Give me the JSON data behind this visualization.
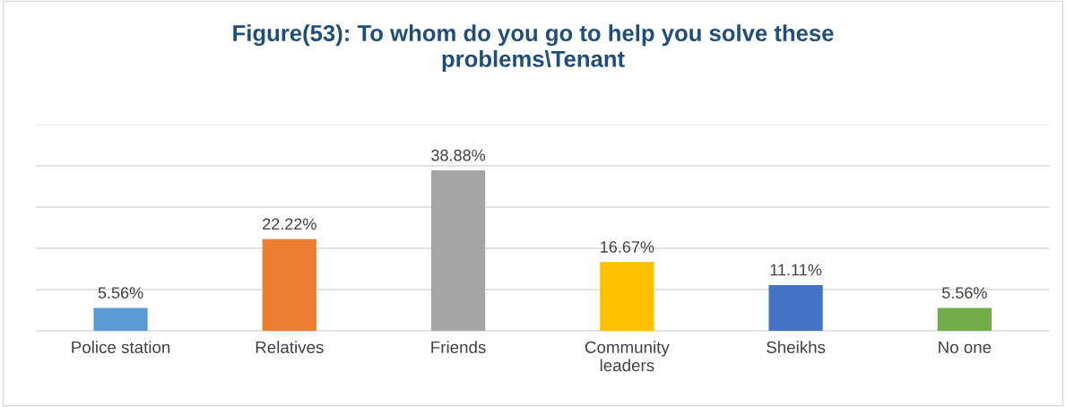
{
  "chart_data": {
    "type": "bar",
    "title": "Figure(53): To whom do you go to help you solve these\nproblems\\Tenant",
    "categories": [
      "Police station",
      "Relatives",
      "Friends",
      "Community\nleaders",
      "Sheikhs",
      "No one"
    ],
    "values": [
      5.56,
      22.22,
      38.88,
      16.67,
      11.11,
      5.56
    ],
    "colors": [
      "#5b9bd5",
      "#ed7d31",
      "#a5a5a5",
      "#ffc000",
      "#4472c4",
      "#70ad47"
    ],
    "value_labels": [
      "5.56%",
      "22.22%",
      "38.88%",
      "16.67%",
      "11.11%",
      "5.56%"
    ],
    "ylim": [
      0,
      50
    ],
    "yticks": [
      {
        "value": 0,
        "label": null
      },
      {
        "value": 10,
        "label": null
      },
      {
        "value": 20,
        "label": null
      },
      {
        "value": 30,
        "label": null
      },
      {
        "value": 40,
        "label": null
      },
      {
        "value": 50,
        "label": null
      }
    ],
    "tick_labels": "x",
    "grid": "y",
    "legend": false
  }
}
